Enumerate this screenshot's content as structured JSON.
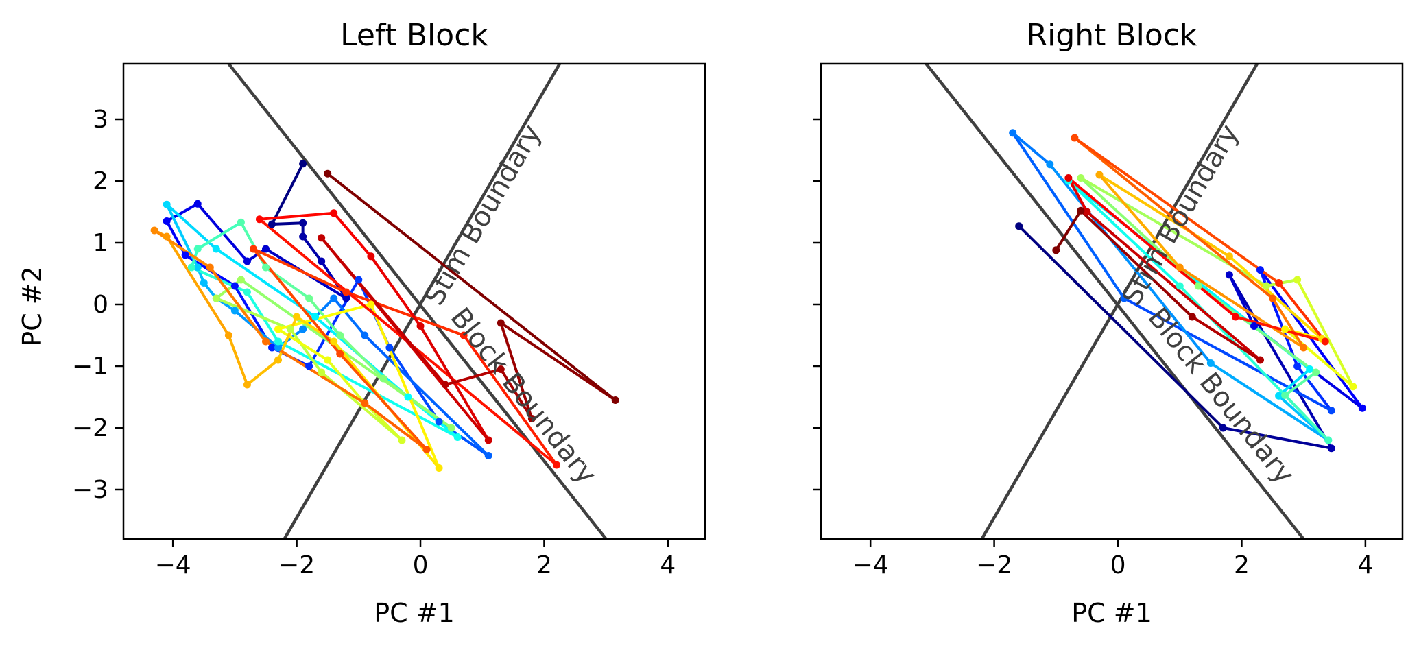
{
  "chart_data": [
    {
      "type": "line",
      "title": "Left Block",
      "xlabel": "PC #1",
      "ylabel": "PC #2",
      "xlim": [
        -4.8,
        4.6
      ],
      "ylim": [
        -3.8,
        3.9
      ],
      "xticks": [
        -4,
        -2,
        0,
        2,
        4
      ],
      "yticks": [
        -3,
        -2,
        -1,
        0,
        1,
        2,
        3
      ],
      "xtick_labels": [
        "−4",
        "−2",
        "0",
        "2",
        "4"
      ],
      "ytick_labels": [
        "−3",
        "−2",
        "−1",
        "0",
        "1",
        "2",
        "3"
      ],
      "grid": false,
      "colormap": "jet",
      "boundaries": [
        {
          "name": "Stim Boundary",
          "x": [
            -2.2,
            2.25
          ],
          "y": [
            -3.8,
            3.9
          ],
          "color": "#404040"
        },
        {
          "name": "Block Boundary",
          "x": [
            -3.1,
            3.0
          ],
          "y": [
            3.9,
            -3.8
          ],
          "color": "#404040"
        }
      ],
      "trajectory": {
        "x": [
          -1.9,
          -2.4,
          -1.9,
          -1.9,
          -1.6,
          -1.2,
          -2.5,
          -2.8,
          -3.6,
          -4.1,
          -3.8,
          -3.0,
          -2.4,
          -1.8,
          -1.0,
          -0.5,
          0.3,
          1.1,
          -0.9,
          -1.4,
          -1.9,
          -2.3,
          -3.0,
          -3.3,
          -3.5,
          -3.6,
          -4.1,
          -3.3,
          -1.7,
          -0.2,
          0.6,
          -2.3,
          -2.8,
          -3.7,
          -3.6,
          -2.9,
          -2.5,
          -1.8,
          -1.3,
          -0.6,
          0.5,
          -2.9,
          -3.3,
          -2.1,
          -1.6,
          -0.3,
          -0.9,
          -1.5,
          -2.3,
          -0.8,
          0.3,
          -1.4,
          -2.0,
          -2.3,
          -2.8,
          -3.1,
          -4.1,
          -4.3,
          -3.4,
          -2.5,
          -0.9,
          0.1,
          -1.3,
          -2.7,
          -1.2,
          0.7,
          2.2,
          -2.6,
          -1.4,
          -0.8,
          0.0,
          1.1,
          -1.6,
          0.4,
          1.3,
          1.8,
          1.3,
          3.15,
          -1.5
        ],
        "y": [
          2.28,
          1.3,
          1.32,
          1.1,
          0.7,
          0.1,
          0.9,
          0.7,
          1.63,
          1.35,
          0.8,
          0.3,
          -0.7,
          -1.0,
          0.4,
          -0.7,
          -1.9,
          -2.45,
          -0.5,
          0.1,
          -0.4,
          -0.7,
          -0.1,
          0.1,
          0.35,
          0.6,
          1.62,
          0.9,
          -0.2,
          -1.5,
          -2.15,
          -0.6,
          0.2,
          0.6,
          0.9,
          1.33,
          0.6,
          0.1,
          -0.5,
          -1.2,
          -2.0,
          0.4,
          0.1,
          -0.4,
          -1.1,
          -2.2,
          -1.6,
          -0.9,
          -0.4,
          0.0,
          -2.65,
          -0.6,
          -0.2,
          -0.9,
          -1.3,
          -0.5,
          1.1,
          1.2,
          0.6,
          -0.6,
          -1.6,
          -2.35,
          -0.8,
          0.9,
          0.2,
          -0.5,
          -2.6,
          1.38,
          1.48,
          0.78,
          -0.35,
          -2.2,
          1.08,
          -1.3,
          -1.05,
          -1.85,
          -0.3,
          -1.55,
          2.12
        ]
      }
    },
    {
      "type": "line",
      "title": "Right Block",
      "xlabel": "PC #1",
      "ylabel": "",
      "xlim": [
        -4.8,
        4.6
      ],
      "ylim": [
        -3.8,
        3.9
      ],
      "xticks": [
        -4,
        -2,
        0,
        2,
        4
      ],
      "yticks": [
        -3,
        -2,
        -1,
        0,
        1,
        2,
        3
      ],
      "xtick_labels": [
        "−4",
        "−2",
        "0",
        "2",
        "4"
      ],
      "ytick_labels": [],
      "grid": false,
      "colormap": "jet",
      "boundaries": [
        {
          "name": "Stim Boundary",
          "x": [
            -2.2,
            2.25
          ],
          "y": [
            -3.8,
            3.9
          ],
          "color": "#404040"
        },
        {
          "name": "Block Boundary",
          "x": [
            -3.1,
            3.0
          ],
          "y": [
            3.9,
            -3.8
          ],
          "color": "#404040"
        }
      ],
      "trajectory": {
        "x": [
          -1.6,
          1.7,
          3.45,
          1.8,
          2.2,
          3.95,
          2.3,
          2.9,
          3.45,
          0.1,
          -1.7,
          -1.1,
          1.5,
          3.4,
          2.6,
          3.1,
          -0.8,
          1.0,
          3.4,
          2.7,
          3.2,
          1.3,
          -0.6,
          2.4,
          2.9,
          3.8,
          2.7,
          3.3,
          1.8,
          -0.3,
          1.0,
          3.0,
          2.5,
          -0.7,
          2.6,
          3.35,
          1.9,
          -0.8,
          -0.5,
          2.3,
          1.2,
          -0.6,
          -1.0
        ],
        "y": [
          1.27,
          -2.0,
          -2.33,
          0.48,
          -0.35,
          -1.68,
          0.56,
          -1.0,
          -1.72,
          0.1,
          2.78,
          2.27,
          -0.95,
          -2.2,
          -1.48,
          -1.05,
          2.0,
          0.3,
          -2.2,
          -1.47,
          -1.1,
          0.3,
          2.05,
          0.3,
          0.4,
          -1.33,
          -0.4,
          -0.56,
          0.78,
          2.1,
          0.6,
          -0.7,
          0.1,
          2.7,
          0.35,
          -0.6,
          -0.2,
          2.05,
          1.5,
          -0.9,
          -0.2,
          1.52,
          0.88
        ]
      }
    }
  ]
}
